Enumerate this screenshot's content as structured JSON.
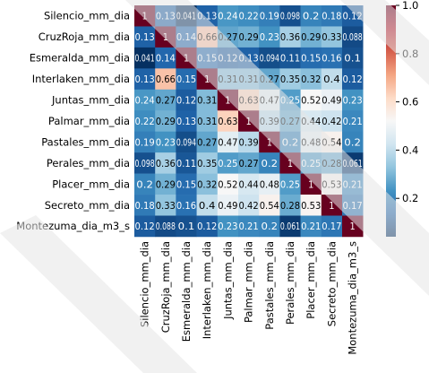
{
  "chart_data": {
    "type": "heatmap",
    "rows": [
      "Silencio_mm_dia",
      "CruzRoja_mm_dia",
      "Esmeralda_mm_dia",
      "Interlaken_mm_dia",
      "Juntas_mm_dia",
      "Palmar_mm_dia",
      "Pastales_mm_dia",
      "Perales_mm_dia",
      "Placer_mm_dia",
      "Secreto_mm_dia",
      "Montezuma_dia_m3_s"
    ],
    "columns": [
      "Silencio_mm_dia",
      "CruzRoja_mm_dia",
      "Esmeralda_mm_dia",
      "Interlaken_mm_dia",
      "Juntas_mm_dia",
      "Palmar_mm_dia",
      "Pastales_mm_dia",
      "Perales_mm_dia",
      "Placer_mm_dia",
      "Secreto_mm_dia",
      "Montezuma_dia_m3_s"
    ],
    "values": [
      [
        1,
        0.13,
        0.041,
        0.13,
        0.24,
        0.22,
        0.19,
        0.098,
        0.2,
        0.18,
        0.12
      ],
      [
        0.13,
        1,
        0.14,
        0.66,
        0.27,
        0.29,
        0.23,
        0.36,
        0.29,
        0.33,
        0.088
      ],
      [
        0.041,
        0.14,
        1,
        0.15,
        0.12,
        0.13,
        0.094,
        0.11,
        0.15,
        0.16,
        0.1
      ],
      [
        0.13,
        0.66,
        0.15,
        1,
        0.31,
        0.31,
        0.27,
        0.35,
        0.32,
        0.4,
        0.12
      ],
      [
        0.24,
        0.27,
        0.12,
        0.31,
        1,
        0.63,
        0.47,
        0.25,
        0.52,
        0.49,
        0.23
      ],
      [
        0.22,
        0.29,
        0.13,
        0.31,
        0.63,
        1,
        0.39,
        0.27,
        0.44,
        0.42,
        0.21
      ],
      [
        0.19,
        0.23,
        0.094,
        0.27,
        0.47,
        0.39,
        1,
        0.2,
        0.48,
        0.54,
        0.2
      ],
      [
        0.098,
        0.36,
        0.11,
        0.35,
        0.25,
        0.27,
        0.2,
        1,
        0.25,
        0.28,
        0.061
      ],
      [
        0.2,
        0.29,
        0.15,
        0.32,
        0.52,
        0.44,
        0.48,
        0.25,
        1,
        0.53,
        0.21
      ],
      [
        0.18,
        0.33,
        0.16,
        0.4,
        0.49,
        0.42,
        0.54,
        0.28,
        0.53,
        1,
        0.17
      ],
      [
        0.12,
        0.088,
        0.1,
        0.12,
        0.23,
        0.21,
        0.2,
        0.061,
        0.21,
        0.17,
        1
      ]
    ],
    "cell_labels": [
      [
        "1",
        "0.13",
        "0.041",
        "0.13",
        "0.24",
        "0.22",
        "0.19",
        "0.098",
        "0.2",
        "0.18",
        "0.12"
      ],
      [
        "0.13",
        "1",
        "0.14",
        "0.66",
        "0.27",
        "0.29",
        "0.23",
        "0.36",
        "0.29",
        "0.33",
        "0.088"
      ],
      [
        "0.041",
        "0.14",
        "1",
        "0.15",
        "0.12",
        "0.13",
        "0.094",
        "0.11",
        "0.15",
        "0.16",
        "0.1"
      ],
      [
        "0.13",
        "0.66",
        "0.15",
        "1",
        "0.31",
        "0.31",
        "0.27",
        "0.35",
        "0.32",
        "0.4",
        "0.12"
      ],
      [
        "0.24",
        "0.27",
        "0.12",
        "0.31",
        "1",
        "0.63",
        "0.47",
        "0.25",
        "0.52",
        "0.49",
        "0.23"
      ],
      [
        "0.22",
        "0.29",
        "0.13",
        "0.31",
        "0.63",
        "1",
        "0.39",
        "0.27",
        "0.44",
        "0.42",
        "0.21"
      ],
      [
        "0.19",
        "0.23",
        "0.094",
        "0.27",
        "0.47",
        "0.39",
        "1",
        "0.2",
        "0.48",
        "0.54",
        "0.2"
      ],
      [
        "0.098",
        "0.36",
        "0.11",
        "0.35",
        "0.25",
        "0.27",
        "0.2",
        "1",
        "0.25",
        "0.28",
        "0.061"
      ],
      [
        "0.2",
        "0.29",
        "0.15",
        "0.32",
        "0.52",
        "0.44",
        "0.48",
        "0.25",
        "1",
        "0.53",
        "0.21"
      ],
      [
        "0.18",
        "0.33",
        "0.16",
        "0.4",
        "0.49",
        "0.42",
        "0.54",
        "0.28",
        "0.53",
        "1",
        "0.17"
      ],
      [
        "0.12",
        "0.088",
        "0.1",
        "0.12",
        "0.23",
        "0.21",
        "0.2",
        "0.061",
        "0.21",
        "0.17",
        "1"
      ]
    ],
    "colorbar": {
      "range": [
        0.041,
        1
      ],
      "ticks": [
        0.2,
        0.4,
        0.6,
        0.8,
        1.0
      ],
      "tick_labels": [
        "0.2",
        "0.4",
        "0.6",
        "0.8",
        "1.0"
      ]
    },
    "colormap": [
      "#053061",
      "#2166ac",
      "#4393c3",
      "#92c5de",
      "#d1e5f0",
      "#f7f7f7",
      "#fddbc7",
      "#f4a582",
      "#d6604d",
      "#b2182b",
      "#67001f"
    ],
    "title": "",
    "xlabel": "",
    "ylabel": "",
    "legend": "colorbar-right",
    "grid": false
  }
}
